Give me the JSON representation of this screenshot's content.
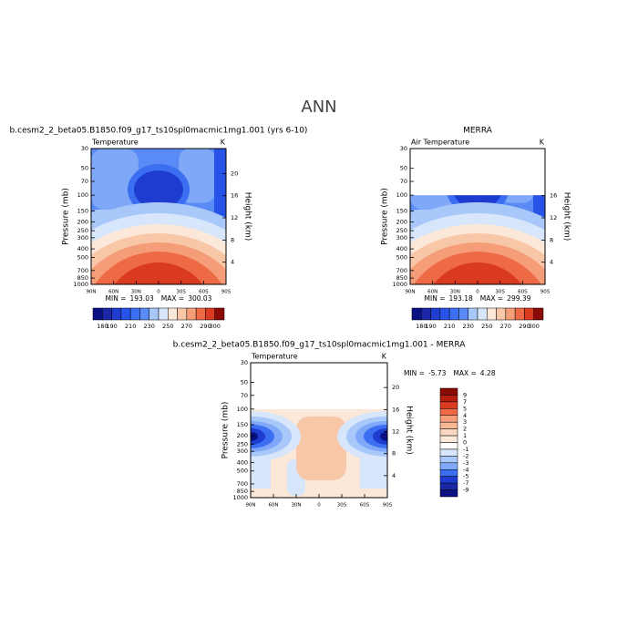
{
  "figure_title": "ANN",
  "chart_data": [
    {
      "type": "contour",
      "title": "b.cesm2_2_beta05.B1850.f09_g17_ts10spl0macmic1mg1.001 (yrs 6-10)",
      "left_label": "Temperature",
      "right_label": "K",
      "ylabel": "Pressure (mb)",
      "y2label": "Height (km)",
      "xlim": [
        90,
        -90
      ],
      "xticks": [
        {
          "value": 90,
          "label": "90N"
        },
        {
          "value": 60,
          "label": "60N"
        },
        {
          "value": 30,
          "label": "30N"
        },
        0,
        {
          "value": -30,
          "label": "30S"
        },
        {
          "value": -60,
          "label": "60S"
        },
        {
          "value": -90,
          "label": "90S"
        }
      ],
      "log_scale": true,
      "ylim": [
        1000,
        30
      ],
      "yticks": [
        30,
        50,
        70,
        100,
        150,
        200,
        250,
        300,
        400,
        500,
        700,
        850,
        1000
      ],
      "y2lim": [
        0,
        24.5
      ],
      "y2ticks": [
        4,
        8,
        12,
        16,
        20
      ],
      "min_label": "MIN =",
      "min": 193.03,
      "max_label": "MAX =",
      "max": 300.03,
      "colorbar": {
        "orientation": "horizontal",
        "lim": [
          170,
          310
        ],
        "ticks": [
          180,
          190,
          210,
          230,
          250,
          270,
          290,
          300
        ],
        "colors": [
          "#0b1183",
          "#1a28a8",
          "#1e3cd0",
          "#2753e8",
          "#3b6ef0",
          "#5a8af5",
          "#a9c8fa",
          "#d7e6fb",
          "#fbe8d8",
          "#f8c7a8",
          "#f59c78",
          "#ee6a45",
          "#d93a20",
          "#8a0a05"
        ]
      }
    },
    {
      "type": "contour",
      "title": "MERRA",
      "left_label": "Air Temperature",
      "right_label": "K",
      "ylabel": "Pressure (mb)",
      "y2label": "Height (km)",
      "xlim": [
        90,
        -90
      ],
      "xticks": [
        {
          "value": 90,
          "label": "90N"
        },
        {
          "value": 60,
          "label": "60N"
        },
        {
          "value": 30,
          "label": "30N"
        },
        0,
        {
          "value": -30,
          "label": "30S"
        },
        {
          "value": -60,
          "label": "60S"
        },
        {
          "value": -90,
          "label": "90S"
        }
      ],
      "log_scale": true,
      "ylim": [
        1000,
        30
      ],
      "yticks": [
        30,
        50,
        70,
        100,
        150,
        200,
        250,
        300,
        400,
        500,
        700,
        850,
        1000
      ],
      "y2lim": [
        0,
        24.5
      ],
      "y2ticks": [
        4,
        8,
        12,
        16
      ],
      "min_label": "MIN =",
      "min": 193.18,
      "max_label": "MAX =",
      "max": 299.39,
      "colorbar": {
        "orientation": "horizontal",
        "lim": [
          170,
          310
        ],
        "ticks": [
          180,
          190,
          210,
          230,
          250,
          270,
          290,
          300
        ],
        "colors": [
          "#0b1183",
          "#1a28a8",
          "#1e3cd0",
          "#2753e8",
          "#3b6ef0",
          "#5a8af5",
          "#a9c8fa",
          "#d7e6fb",
          "#fbe8d8",
          "#f8c7a8",
          "#f59c78",
          "#ee6a45",
          "#d93a20",
          "#8a0a05"
        ]
      }
    },
    {
      "type": "contour",
      "title": "b.cesm2_2_beta05.B1850.f09_g17_ts10spl0macmic1mg1.001 - MERRA",
      "left_label": "Temperature",
      "right_label": "K",
      "ylabel": "Pressure (mb)",
      "y2label": "Height (km)",
      "xlim": [
        90,
        -90
      ],
      "xticks": [
        {
          "value": 90,
          "label": "90N"
        },
        {
          "value": 60,
          "label": "60N"
        },
        {
          "value": 30,
          "label": "30N"
        },
        0,
        {
          "value": -30,
          "label": "30S"
        },
        {
          "value": -60,
          "label": "60S"
        },
        {
          "value": -90,
          "label": "90S"
        }
      ],
      "log_scale": true,
      "ylim": [
        1000,
        30
      ],
      "yticks": [
        30,
        50,
        70,
        100,
        150,
        200,
        250,
        300,
        400,
        500,
        700,
        850,
        1000
      ],
      "y2lim": [
        0,
        24.5
      ],
      "y2ticks": [
        4,
        8,
        12,
        16,
        20
      ],
      "min_label": "MIN =",
      "min": -5.73,
      "max_label": "MAX =",
      "max": 4.28,
      "colorbar": {
        "orientation": "vertical",
        "levels": [
          9,
          7,
          5,
          4,
          3,
          2,
          1,
          0,
          -1,
          -2,
          -3,
          -4,
          -5,
          -7,
          -9
        ],
        "colors": [
          "#8a0a05",
          "#b51d10",
          "#d93a20",
          "#ee6a45",
          "#f59c78",
          "#f8b896",
          "#fbd6c0",
          "#fbe8d8",
          "#ffffff",
          "#d7e6fb",
          "#a9c8fa",
          "#7fa8f8",
          "#3b6ef0",
          "#1e3cd0",
          "#1a28a8",
          "#0b1183"
        ]
      }
    }
  ]
}
